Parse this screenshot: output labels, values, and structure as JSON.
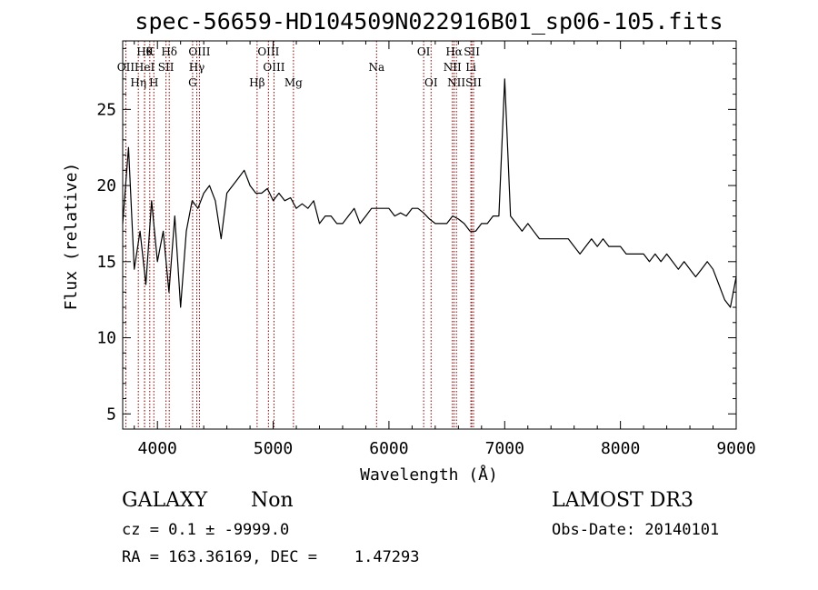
{
  "chart_data": {
    "type": "line",
    "title": "spec-56659-HD104509N022916B01_sp06-105.fits",
    "xlabel": "Wavelength (Å)",
    "ylabel": "Flux (relative)",
    "xlim": [
      3700,
      9000
    ],
    "ylim": [
      4,
      29.5
    ],
    "xticks": [
      4000,
      5000,
      6000,
      7000,
      8000,
      9000
    ],
    "yticks": [
      5,
      10,
      15,
      20,
      25
    ],
    "grid": false,
    "line_color": "#000000",
    "marker_color": "#8b0000",
    "spectral_lines": [
      {
        "label": "OII",
        "wavelength": 3727,
        "row": 2
      },
      {
        "label": "Hη",
        "wavelength": 3835,
        "row": 3
      },
      {
        "label": "Hθ",
        "wavelength": 3889,
        "row": 1
      },
      {
        "label": "HeI",
        "wavelength": 3889,
        "row": 2
      },
      {
        "label": "K",
        "wavelength": 3934,
        "row": 1
      },
      {
        "label": "H",
        "wavelength": 3969,
        "row": 3
      },
      {
        "label": "Hδ",
        "wavelength": 4102,
        "row": 1
      },
      {
        "label": "SII",
        "wavelength": 4074,
        "row": 2
      },
      {
        "label": "OIII",
        "wavelength": 4363,
        "row": 1
      },
      {
        "label": "Hγ",
        "wavelength": 4340,
        "row": 2
      },
      {
        "label": "G",
        "wavelength": 4304,
        "row": 3
      },
      {
        "label": "Hβ",
        "wavelength": 4861,
        "row": 3
      },
      {
        "label": "OIII",
        "wavelength": 4959,
        "row": 1
      },
      {
        "label": "OIII",
        "wavelength": 5007,
        "row": 2
      },
      {
        "label": "Mg",
        "wavelength": 5175,
        "row": 3
      },
      {
        "label": "Na",
        "wavelength": 5893,
        "row": 2
      },
      {
        "label": "OI",
        "wavelength": 6300,
        "row": 1
      },
      {
        "label": "OI",
        "wavelength": 6364,
        "row": 3
      },
      {
        "label": "Hα",
        "wavelength": 6563,
        "row": 1
      },
      {
        "label": "NII",
        "wavelength": 6548,
        "row": 2
      },
      {
        "label": "NII",
        "wavelength": 6583,
        "row": 3
      },
      {
        "label": "SII",
        "wavelength": 6716,
        "row": 1
      },
      {
        "label": "Li",
        "wavelength": 6708,
        "row": 2
      },
      {
        "label": "SII",
        "wavelength": 6731,
        "row": 3
      }
    ],
    "series": [
      {
        "x": [
          3700,
          3750,
          3800,
          3850,
          3900,
          3950,
          4000,
          4050,
          4100,
          4150,
          4200,
          4250,
          4300,
          4350,
          4400,
          4450,
          4500,
          4550,
          4600,
          4650,
          4700,
          4750,
          4800,
          4850,
          4900,
          4950,
          5000,
          5050,
          5100,
          5150,
          5200,
          5250,
          5300,
          5350,
          5400,
          5450,
          5500,
          5550,
          5600,
          5650,
          5700,
          5750,
          5800,
          5850,
          5900,
          5950,
          6000,
          6050,
          6100,
          6150,
          6200,
          6250,
          6300,
          6350,
          6400,
          6450,
          6500,
          6550,
          6600,
          6650,
          6700,
          6750,
          6800,
          6850,
          6900,
          6950,
          7000,
          7050,
          7100,
          7150,
          7200,
          7250,
          7300,
          7350,
          7400,
          7450,
          7500,
          7550,
          7600,
          7650,
          7700,
          7750,
          7800,
          7850,
          7900,
          7950,
          8000,
          8050,
          8100,
          8150,
          8200,
          8250,
          8300,
          8350,
          8400,
          8450,
          8500,
          8550,
          8600,
          8650,
          8700,
          8750,
          8800,
          8850,
          8900,
          8950,
          9000
        ],
        "y": [
          17.5,
          22.5,
          14.5,
          17.0,
          13.5,
          19.0,
          15.0,
          17.0,
          13.0,
          18.0,
          12.0,
          17.0,
          19.0,
          18.5,
          19.5,
          20.0,
          19.0,
          16.5,
          19.5,
          20.0,
          20.5,
          21.0,
          20.0,
          19.5,
          19.5,
          19.8,
          19.0,
          19.5,
          19.0,
          19.2,
          18.5,
          18.8,
          18.5,
          19.0,
          17.5,
          18.0,
          18.0,
          17.5,
          17.5,
          18.0,
          18.5,
          17.5,
          18.0,
          18.5,
          18.5,
          18.5,
          18.5,
          18.0,
          18.2,
          18.0,
          18.5,
          18.5,
          18.2,
          17.8,
          17.5,
          17.5,
          17.5,
          18.0,
          17.8,
          17.5,
          17.0,
          17.0,
          17.5,
          17.5,
          18.0,
          18.0,
          27.0,
          18.0,
          17.5,
          17.0,
          17.5,
          17.0,
          16.5,
          16.5,
          16.5,
          16.5,
          16.5,
          16.5,
          16.0,
          15.5,
          16.0,
          16.5,
          16.0,
          16.5,
          16.0,
          16.0,
          16.0,
          15.5,
          15.5,
          15.5,
          15.5,
          15.0,
          15.5,
          15.0,
          15.5,
          15.0,
          14.5,
          15.0,
          14.5,
          14.0,
          14.5,
          15.0,
          14.5,
          13.5,
          12.5,
          12.0,
          14.0
        ]
      }
    ]
  },
  "info": {
    "class": "GALAXY",
    "subclass": "Non",
    "survey": "LAMOST DR3",
    "cz": "cz = 0.1 ± -9999.0",
    "obsdate": "Obs-Date: 20140101",
    "radec": "RA = 163.36169, DEC =    1.47293"
  }
}
